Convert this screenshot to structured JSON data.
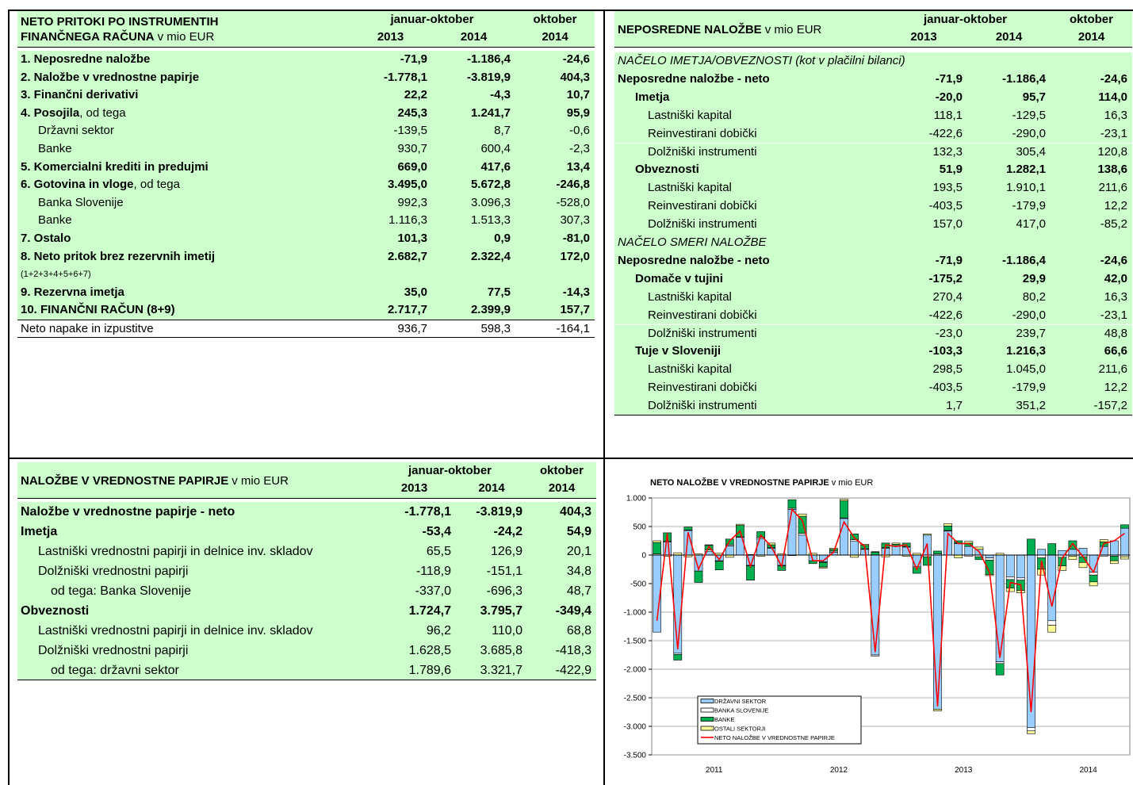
{
  "tables": [
    {
      "title": "NETO PRITOKI PO INSTRUMENTIH FINANČNEGA RAČUNA",
      "unit": "v mio EUR",
      "period": "januar-oktober",
      "month": "oktober",
      "years": [
        "2013",
        "2014",
        "2014"
      ],
      "rows": [
        {
          "label": "1. Neposredne naložbe",
          "values": [
            "-71,9",
            "-1.186,4",
            "-24,6"
          ],
          "bold": true,
          "level": 0
        },
        {
          "label": "2. Naložbe v vrednostne papirje",
          "values": [
            "-1.778,1",
            "-3.819,9",
            "404,3"
          ],
          "bold": true,
          "level": 0
        },
        {
          "label": "3. Finančni derivativi",
          "values": [
            "22,2",
            "-4,3",
            "10,7"
          ],
          "bold": true,
          "level": 0
        },
        {
          "label": "4. Posojila",
          "note": ", od tega",
          "values": [
            "245,3",
            "1.241,7",
            "95,9"
          ],
          "bold": true,
          "level": 0
        },
        {
          "label": "Državni sektor",
          "values": [
            "-139,5",
            "8,7",
            "-0,6"
          ],
          "bold": false,
          "level": 1
        },
        {
          "label": "Banke",
          "values": [
            "930,7",
            "600,4",
            "-2,3"
          ],
          "bold": false,
          "level": 1
        },
        {
          "label": "5. Komercialni krediti in predujmi",
          "values": [
            "669,0",
            "417,6",
            "13,4"
          ],
          "bold": true,
          "level": 0
        },
        {
          "label": "6. Gotovina in vloge",
          "note": ", od tega",
          "values": [
            "3.495,0",
            "5.672,8",
            "-246,8"
          ],
          "bold": true,
          "level": 0
        },
        {
          "label": "Banka Slovenije",
          "values": [
            "992,3",
            "3.096,3",
            "-528,0"
          ],
          "bold": false,
          "level": 1
        },
        {
          "label": "Banke",
          "values": [
            "1.116,3",
            "1.513,3",
            "307,3"
          ],
          "bold": false,
          "level": 1
        },
        {
          "label": "7. Ostalo",
          "values": [
            "101,3",
            "0,9",
            "-81,0"
          ],
          "bold": true,
          "level": 0
        },
        {
          "label": "8. Neto pritok brez rezervnih imetij",
          "values": [
            "2.682,7",
            "2.322,4",
            "172,0"
          ],
          "bold": true,
          "level": 0
        },
        {
          "label": "(1+2+3+4+5+6+7)",
          "small": true,
          "level": 0
        },
        {
          "label": "9. Rezervna imetja",
          "values": [
            "35,0",
            "77,5",
            "-14,3"
          ],
          "bold": true,
          "level": 0
        },
        {
          "label": "10. FINANČNI RAČUN (8+9)",
          "values": [
            "2.717,7",
            "2.399,9",
            "157,7"
          ],
          "bold": true,
          "level": 0
        },
        {
          "label": "Neto napake in izpustitve",
          "values": [
            "936,7",
            "598,3",
            "-164,1"
          ],
          "bold": false,
          "level": 0,
          "shaded": false
        }
      ]
    },
    {
      "title": "NEPOSREDNE NALOŽBE",
      "unit": "v mio EUR",
      "period": "januar-oktober",
      "month": "oktober",
      "years": [
        "2013",
        "2014",
        "2014"
      ],
      "rows": [
        {
          "label": "NAČELO IMETJA/OBVEZNOSTI (kot v plačilni bilanci)",
          "italic": true,
          "level": 0
        },
        {
          "label": "Neposredne naložbe - neto",
          "values": [
            "-71,9",
            "-1.186,4",
            "-24,6"
          ],
          "bold": true,
          "level": 0
        },
        {
          "label": "Imetja",
          "values": [
            "-20,0",
            "95,7",
            "114,0"
          ],
          "bold": true,
          "level": 1
        },
        {
          "label": "Lastniški kapital",
          "values": [
            "118,1",
            "-129,5",
            "16,3"
          ],
          "bold": false,
          "level": 2
        },
        {
          "label": "Reinvestirani dobički",
          "values": [
            "-422,6",
            "-290,0",
            "-23,1"
          ],
          "bold": false,
          "level": 2
        },
        {
          "label": "Dolžniški instrumenti",
          "values": [
            "132,3",
            "305,4",
            "120,8"
          ],
          "bold": false,
          "level": 2
        },
        {
          "label": "Obveznosti",
          "values": [
            "51,9",
            "1.282,1",
            "138,6"
          ],
          "bold": true,
          "level": 1
        },
        {
          "label": "Lastniški kapital",
          "values": [
            "193,5",
            "1.910,1",
            "211,6"
          ],
          "bold": false,
          "level": 2
        },
        {
          "label": "Reinvestirani dobički",
          "values": [
            "-403,5",
            "-179,9",
            "12,2"
          ],
          "bold": false,
          "level": 2
        },
        {
          "label": "Dolžniški instrumenti",
          "values": [
            "157,0",
            "417,0",
            "-85,2"
          ],
          "bold": false,
          "level": 2
        },
        {
          "label": "NAČELO SMERI NALOŽBE",
          "italic": true,
          "level": 0
        },
        {
          "label": "Neposredne naložbe - neto",
          "values": [
            "-71,9",
            "-1.186,4",
            "-24,6"
          ],
          "bold": true,
          "level": 0
        },
        {
          "label": "Domače v tujini",
          "values": [
            "-175,2",
            "29,9",
            "42,0"
          ],
          "bold": true,
          "level": 1
        },
        {
          "label": "Lastniški kapital",
          "values": [
            "270,4",
            "80,2",
            "16,3"
          ],
          "bold": false,
          "level": 2
        },
        {
          "label": "Reinvestirani dobički",
          "values": [
            "-422,6",
            "-290,0",
            "-23,1"
          ],
          "bold": false,
          "level": 2
        },
        {
          "label": "Dolžniški instrumenti",
          "values": [
            "-23,0",
            "239,7",
            "48,8"
          ],
          "bold": false,
          "level": 2
        },
        {
          "label": "Tuje v Sloveniji",
          "values": [
            "-103,3",
            "1.216,3",
            "66,6"
          ],
          "bold": true,
          "level": 1
        },
        {
          "label": "Lastniški kapital",
          "values": [
            "298,5",
            "1.045,0",
            "211,6"
          ],
          "bold": false,
          "level": 2
        },
        {
          "label": "Reinvestirani dobički",
          "values": [
            "-403,5",
            "-179,9",
            "12,2"
          ],
          "bold": false,
          "level": 2
        },
        {
          "label": "Dolžniški instrumenti",
          "values": [
            "1,7",
            "351,2",
            "-157,2"
          ],
          "bold": false,
          "level": 2
        }
      ]
    },
    {
      "title": "NALOŽBE V VREDNOSTNE PAPIRJE",
      "unit": "v mio EUR",
      "period": "januar-oktober",
      "month": "oktober",
      "years": [
        "2013",
        "2014",
        "2014"
      ],
      "rows": [
        {
          "label": "Naložbe v vrednostne papirje - neto",
          "values": [
            "-1.778,1",
            "-3.819,9",
            "404,3"
          ],
          "bold": true,
          "level": 0
        },
        {
          "label": "Imetja",
          "values": [
            "-53,4",
            "-24,2",
            "54,9"
          ],
          "bold": true,
          "level": 0
        },
        {
          "label": "Lastniški vrednostni papirji in delnice inv. skladov",
          "values": [
            "65,5",
            "126,9",
            "20,1"
          ],
          "bold": false,
          "level": 1
        },
        {
          "label": "Dolžniški vrednostni papirji",
          "values": [
            "-118,9",
            "-151,1",
            "34,8"
          ],
          "bold": false,
          "level": 1
        },
        {
          "label": "od tega: Banka Slovenije",
          "values": [
            "-337,0",
            "-696,3",
            "48,7"
          ],
          "bold": false,
          "level": 2
        },
        {
          "label": "Obveznosti",
          "values": [
            "1.724,7",
            "3.795,7",
            "-349,4"
          ],
          "bold": true,
          "level": 0
        },
        {
          "label": "Lastniški vrednostni papirji in delnice inv. skladov",
          "values": [
            "96,2",
            "110,0",
            "68,8"
          ],
          "bold": false,
          "level": 1
        },
        {
          "label": "Dolžniški vrednostni papirji",
          "values": [
            "1.628,5",
            "3.685,8",
            "-418,3"
          ],
          "bold": false,
          "level": 1
        },
        {
          "label": "od tega: državni sektor",
          "values": [
            "1.789,6",
            "3.321,7",
            "-422,9"
          ],
          "bold": false,
          "level": 2
        }
      ]
    }
  ],
  "chart_data": {
    "type": "bar",
    "stacked": true,
    "title": "NETO NALOŽBE V VREDNOSTNE PAPIRJE",
    "unit": "v mio EUR",
    "categories": [
      null,
      null,
      null,
      null,
      null,
      null,
      null,
      null,
      null,
      null,
      null,
      null,
      null,
      null,
      null,
      null,
      null,
      null,
      null,
      null,
      null,
      null,
      null,
      null,
      null,
      null,
      null,
      null,
      null,
      null,
      null,
      null,
      null,
      null,
      null,
      null,
      null,
      null,
      null,
      null,
      null,
      null,
      null,
      null,
      null,
      null
    ],
    "x_groups": [
      "2011",
      "2012",
      "2013",
      "2014"
    ],
    "ylim": [
      -3500,
      1000
    ],
    "yticks": [
      {
        "value": 1000,
        "label": "1.000"
      },
      500,
      0,
      -500,
      {
        "value": -1000,
        "label": "-1.000"
      },
      {
        "value": -1500,
        "label": "-1.500"
      },
      {
        "value": -2000,
        "label": "-2.000"
      },
      {
        "value": -2500,
        "label": "-2.500"
      },
      {
        "value": -3000,
        "label": "-3.000"
      },
      {
        "value": -3500,
        "label": "-3.500"
      }
    ],
    "grid": true,
    "legend": "lower left",
    "series": [
      {
        "name": "DRŽAVNI SEKTOR",
        "type": "bar",
        "color": "#99ccff",
        "values": [
          -1350,
          230,
          -1720,
          430,
          -280,
          60,
          -100,
          160,
          310,
          -180,
          290,
          120,
          -180,
          800,
          350,
          -100,
          -120,
          50,
          640,
          240,
          100,
          -1750,
          120,
          150,
          140,
          -200,
          350,
          -2700,
          420,
          200,
          150,
          100,
          -50,
          -1870,
          -380,
          -400,
          -3020,
          100,
          -1150,
          80,
          100,
          120,
          -300,
          150,
          250,
          470
        ]
      },
      {
        "name": "BANKA SLOVENIJE",
        "type": "bar",
        "color": "#ffffff",
        "values": [
          20,
          10,
          -20,
          10,
          0,
          30,
          -10,
          20,
          10,
          -10,
          20,
          10,
          -10,
          20,
          30,
          0,
          -10,
          20,
          10,
          30,
          10,
          -20,
          10,
          10,
          10,
          -20,
          -30,
          20,
          10,
          10,
          -20,
          -30,
          -40,
          -30,
          -50,
          -40,
          -60,
          -50,
          -80,
          -40,
          -20,
          -30,
          -50,
          -20,
          -20,
          -30
        ]
      },
      {
        "name": "BANKE",
        "type": "bar",
        "color": "#00b050",
        "values": [
          200,
          150,
          -100,
          50,
          -200,
          80,
          -150,
          100,
          200,
          -250,
          100,
          50,
          -80,
          150,
          300,
          -50,
          -80,
          30,
          300,
          100,
          60,
          50,
          80,
          30,
          60,
          -100,
          -150,
          50,
          80,
          40,
          60,
          -50,
          -250,
          -200,
          -150,
          -180,
          280,
          -200,
          200,
          -150,
          150,
          -100,
          -120,
          80,
          -80,
          60
        ]
      },
      {
        "name": "OSTALI SEKTORJI",
        "type": "bar",
        "color": "#ffff99",
        "values": [
          30,
          -20,
          40,
          -30,
          20,
          10,
          30,
          -40,
          20,
          10,
          -20,
          30,
          20,
          -10,
          40,
          30,
          -20,
          20,
          30,
          -40,
          20,
          10,
          -30,
          20,
          -20,
          30,
          20,
          -30,
          40,
          -50,
          30,
          40,
          -20,
          30,
          -60,
          -40,
          -50,
          -100,
          -120,
          -80,
          -60,
          -90,
          -70,
          40,
          -50,
          -40
        ]
      },
      {
        "name": "NETO NALOŽBE V VREDNOSTNE PAPIRJE",
        "type": "line",
        "color": "#ff0000",
        "values": [
          -1150,
          380,
          -1650,
          400,
          -250,
          150,
          -80,
          250,
          420,
          -200,
          350,
          150,
          -200,
          800,
          600,
          -100,
          -100,
          50,
          580,
          300,
          150,
          -1700,
          180,
          150,
          180,
          -250,
          200,
          -2650,
          380,
          200,
          200,
          60,
          -300,
          -1800,
          -480,
          -520,
          -2750,
          -100,
          -900,
          -50,
          200,
          -30,
          -300,
          200,
          250,
          380
        ]
      }
    ]
  }
}
